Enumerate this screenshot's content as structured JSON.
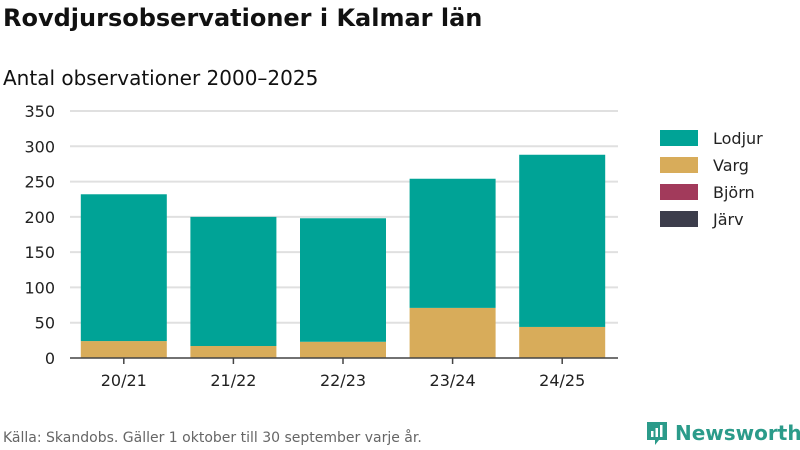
{
  "title": "Rovdjursobservationer i Kalmar län",
  "subtitle": "Antal observationer 2000–2025",
  "source": "Källa: Skandobs. Gäller 1 oktober till 30 september varje år.",
  "brand": "Newsworthy",
  "chart_data": {
    "type": "bar",
    "stacked": true,
    "categories": [
      "20/21",
      "21/22",
      "22/23",
      "23/24",
      "24/25"
    ],
    "series": [
      {
        "name": "Lodjur",
        "color": "#00a396",
        "values": [
          208,
          183,
          175,
          183,
          244
        ]
      },
      {
        "name": "Varg",
        "color": "#d8ac5a",
        "values": [
          24,
          17,
          23,
          71,
          44
        ]
      },
      {
        "name": "Björn",
        "color": "#a23a5b",
        "values": [
          0,
          0,
          0,
          0,
          0
        ]
      },
      {
        "name": "Järv",
        "color": "#3c3d4b",
        "values": [
          0,
          0,
          0,
          0,
          0
        ]
      }
    ],
    "yticks": [
      0,
      50,
      100,
      150,
      200,
      250,
      300,
      350
    ],
    "ylim": [
      0,
      350
    ],
    "grid": true,
    "legend": "right"
  }
}
